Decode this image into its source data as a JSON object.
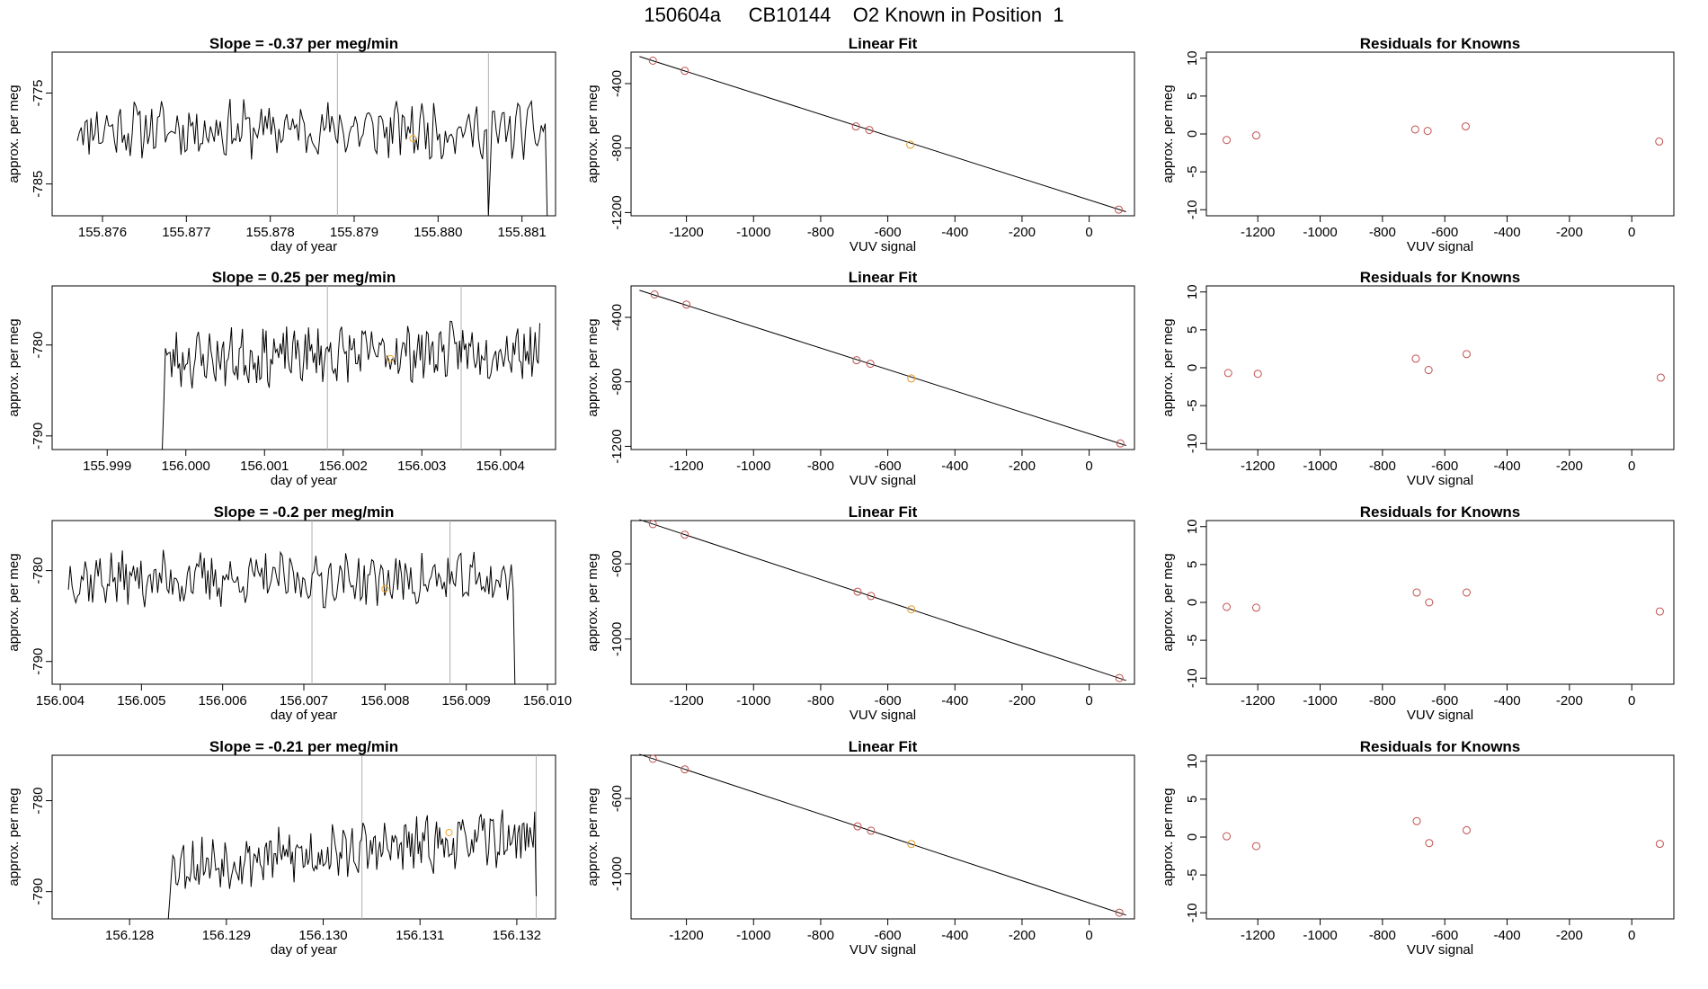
{
  "page": {
    "title": "150604a     CB10144    O2 Known in Position  1"
  },
  "chart_data": [
    {
      "row": 1,
      "timeseries": {
        "type": "line",
        "title": "Slope =  -0.37  per meg/min",
        "xlabel": "day of year",
        "ylabel": "approx. per meg",
        "x_ticks": [
          "155.876",
          "155.877",
          "155.878",
          "155.879",
          "155.880",
          "155.881"
        ],
        "y_ticks": [
          "-775",
          "-785"
        ],
        "xlim": [
          155.8754,
          155.8814
        ],
        "ylim": [
          -788.5,
          -770.5
        ],
        "x_start": 155.8757,
        "x_end": 155.8813,
        "baseline": -779,
        "amplitude": 2.6,
        "trend": -0.2,
        "seed": 11,
        "dips": [
          {
            "x": 155.8806,
            "depth": -788.5
          },
          {
            "x": 155.8813,
            "depth": -788.5
          }
        ],
        "vlines": [
          155.8788,
          155.8806
        ],
        "marker": {
          "x": 155.8797,
          "y": -780,
          "color": "#f5a623"
        }
      },
      "fit": {
        "type": "scatter",
        "title": "Linear Fit",
        "xlabel": "VUV signal",
        "ylabel": "approx. per meg",
        "x_ticks": [
          "-1200",
          "-1000",
          "-800",
          "-600",
          "-400",
          "-200",
          "0"
        ],
        "y_ticks": [
          "-400",
          "-800",
          "-1200"
        ],
        "xlim": [
          -1365,
          135
        ],
        "ylim": [
          -1220,
          -205
        ],
        "line": [
          [
            -1340,
            -232
          ],
          [
            110,
            -1195
          ]
        ],
        "points": [
          {
            "x": -1300,
            "y": -258,
            "color": "#c0504d"
          },
          {
            "x": -1205,
            "y": -321,
            "color": "#c0504d"
          },
          {
            "x": -695,
            "y": -666,
            "color": "#c0504d"
          },
          {
            "x": -655,
            "y": -688,
            "color": "#c0504d"
          },
          {
            "x": -533,
            "y": -779,
            "color": "#e39b2a"
          },
          {
            "x": 88,
            "y": -1182,
            "color": "#c0504d"
          }
        ]
      },
      "residuals": {
        "type": "scatter",
        "title": "Residuals for Knowns",
        "xlabel": "VUV signal",
        "ylabel": "approx. per meg",
        "x_ticks": [
          "-1200",
          "-1000",
          "-800",
          "-600",
          "-400",
          "-200",
          "0"
        ],
        "y_ticks": [
          "-10",
          "-5",
          "0",
          "5",
          "10"
        ],
        "xlim": [
          -1365,
          135
        ],
        "ylim": [
          -10.8,
          10.8
        ],
        "points": [
          {
            "x": -1300,
            "y": -0.8,
            "color": "#c0504d"
          },
          {
            "x": -1205,
            "y": -0.2,
            "color": "#c0504d"
          },
          {
            "x": -695,
            "y": 0.6,
            "color": "#c0504d"
          },
          {
            "x": -655,
            "y": 0.4,
            "color": "#c0504d"
          },
          {
            "x": -533,
            "y": 1.0,
            "color": "#c0504d"
          },
          {
            "x": 88,
            "y": -1.0,
            "color": "#c0504d"
          }
        ]
      }
    },
    {
      "row": 2,
      "timeseries": {
        "type": "line",
        "title": "Slope =  0.25  per meg/min",
        "xlabel": "day of year",
        "ylabel": "approx. per meg",
        "x_ticks": [
          "155.999",
          "156.000",
          "156.001",
          "156.002",
          "156.003",
          "156.004"
        ],
        "y_ticks": [
          "-780",
          "-790"
        ],
        "xlim": [
          155.9983,
          156.0047
        ],
        "ylim": [
          -791.5,
          -773.5
        ],
        "x_start": 155.9997,
        "x_end": 156.0045,
        "baseline": -781,
        "amplitude": 2.6,
        "trend": 1.2,
        "seed": 23,
        "dips": [
          {
            "x": 155.9997,
            "depth": -791.5
          }
        ],
        "vlines": [
          156.0018,
          156.0035
        ],
        "marker": {
          "x": 156.0026,
          "y": -781.5,
          "color": "#f5a623"
        }
      },
      "fit": {
        "type": "scatter",
        "title": "Linear Fit",
        "xlabel": "VUV signal",
        "ylabel": "approx. per meg",
        "x_ticks": [
          "-1200",
          "-1000",
          "-800",
          "-600",
          "-400",
          "-200",
          "0"
        ],
        "y_ticks": [
          "-400",
          "-800",
          "-1200"
        ],
        "xlim": [
          -1365,
          135
        ],
        "ylim": [
          -1220,
          -205
        ],
        "line": [
          [
            -1340,
            -232
          ],
          [
            110,
            -1195
          ]
        ],
        "points": [
          {
            "x": -1295,
            "y": -258,
            "color": "#c0504d"
          },
          {
            "x": -1200,
            "y": -321,
            "color": "#c0504d"
          },
          {
            "x": -693,
            "y": -666,
            "color": "#c0504d"
          },
          {
            "x": -652,
            "y": -688,
            "color": "#c0504d"
          },
          {
            "x": -530,
            "y": -779,
            "color": "#e39b2a"
          },
          {
            "x": 93,
            "y": -1182,
            "color": "#c0504d"
          }
        ]
      },
      "residuals": {
        "type": "scatter",
        "title": "Residuals for Knowns",
        "xlabel": "VUV signal",
        "ylabel": "approx. per meg",
        "x_ticks": [
          "-1200",
          "-1000",
          "-800",
          "-600",
          "-400",
          "-200",
          "0"
        ],
        "y_ticks": [
          "-10",
          "-5",
          "0",
          "5",
          "10"
        ],
        "xlim": [
          -1365,
          135
        ],
        "ylim": [
          -10.8,
          10.8
        ],
        "points": [
          {
            "x": -1295,
            "y": -0.7,
            "color": "#c0504d"
          },
          {
            "x": -1200,
            "y": -0.8,
            "color": "#c0504d"
          },
          {
            "x": -693,
            "y": 1.2,
            "color": "#c0504d"
          },
          {
            "x": -652,
            "y": -0.3,
            "color": "#c0504d"
          },
          {
            "x": -530,
            "y": 1.8,
            "color": "#c0504d"
          },
          {
            "x": 93,
            "y": -1.3,
            "color": "#c0504d"
          }
        ]
      }
    },
    {
      "row": 3,
      "timeseries": {
        "type": "line",
        "title": "Slope =  -0.2  per meg/min",
        "xlabel": "day of year",
        "ylabel": "approx. per meg",
        "x_ticks": [
          "156.004",
          "156.005",
          "156.006",
          "156.007",
          "156.008",
          "156.009",
          "156.010"
        ],
        "y_ticks": [
          "-780",
          "-790"
        ],
        "xlim": [
          156.0039,
          156.0101
        ],
        "ylim": [
          -792.5,
          -774.5
        ],
        "x_start": 156.0041,
        "x_end": 156.0096,
        "baseline": -781,
        "amplitude": 2.5,
        "trend": -0.3,
        "seed": 37,
        "dips": [
          {
            "x": 156.0096,
            "depth": -792.5
          }
        ],
        "vlines": [
          156.0071,
          156.0088
        ],
        "marker": {
          "x": 156.008,
          "y": -782,
          "color": "#f5a623"
        }
      },
      "fit": {
        "type": "scatter",
        "title": "Linear Fit",
        "xlabel": "VUV signal",
        "ylabel": "approx. per meg",
        "x_ticks": [
          "-1200",
          "-1000",
          "-800",
          "-600",
          "-400",
          "-200",
          "0"
        ],
        "y_ticks": [
          "-600",
          "-1000"
        ],
        "xlim": [
          -1365,
          135
        ],
        "ylim": [
          -1240,
          -370
        ],
        "line": [
          [
            -1340,
            -365
          ],
          [
            110,
            -1220
          ]
        ],
        "points": [
          {
            "x": -1300,
            "y": -389,
            "color": "#c0504d"
          },
          {
            "x": -1205,
            "y": -445,
            "color": "#c0504d"
          },
          {
            "x": -690,
            "y": -748,
            "color": "#c0504d"
          },
          {
            "x": -650,
            "y": -771,
            "color": "#c0504d"
          },
          {
            "x": -530,
            "y": -842,
            "color": "#e39b2a"
          },
          {
            "x": 90,
            "y": -1207,
            "color": "#c0504d"
          }
        ]
      },
      "residuals": {
        "type": "scatter",
        "title": "Residuals for Knowns",
        "xlabel": "VUV signal",
        "ylabel": "approx. per meg",
        "x_ticks": [
          "-1200",
          "-1000",
          "-800",
          "-600",
          "-400",
          "-200",
          "0"
        ],
        "y_ticks": [
          "-10",
          "-5",
          "0",
          "5",
          "10"
        ],
        "xlim": [
          -1365,
          135
        ],
        "ylim": [
          -10.8,
          10.8
        ],
        "points": [
          {
            "x": -1300,
            "y": -0.6,
            "color": "#c0504d"
          },
          {
            "x": -1205,
            "y": -0.7,
            "color": "#c0504d"
          },
          {
            "x": -690,
            "y": 1.3,
            "color": "#c0504d"
          },
          {
            "x": -650,
            "y": 0.0,
            "color": "#c0504d"
          },
          {
            "x": -530,
            "y": 1.3,
            "color": "#c0504d"
          },
          {
            "x": 90,
            "y": -1.2,
            "color": "#c0504d"
          }
        ]
      }
    },
    {
      "row": 4,
      "timeseries": {
        "type": "line",
        "title": "Slope =  -0.21  per meg/min",
        "xlabel": "day of year",
        "ylabel": "approx. per meg",
        "x_ticks": [
          "156.128",
          "156.129",
          "156.130",
          "156.131",
          "156.132"
        ],
        "y_ticks": [
          "-780",
          "-790"
        ],
        "xlim": [
          156.1272,
          156.1324
        ],
        "ylim": [
          -793,
          -775
        ],
        "x_start": 156.1284,
        "x_end": 156.1322,
        "baseline": -785.5,
        "amplitude": 2.5,
        "trend": 3.2,
        "seed": 53,
        "dips": [
          {
            "x": 156.1284,
            "depth": -793
          },
          {
            "x": 156.1322,
            "depth": -790.5
          }
        ],
        "vlines": [
          156.1304,
          156.1322
        ],
        "marker": {
          "x": 156.1313,
          "y": -783.5,
          "color": "#f5a623"
        }
      },
      "fit": {
        "type": "scatter",
        "title": "Linear Fit",
        "xlabel": "VUV signal",
        "ylabel": "approx. per meg",
        "x_ticks": [
          "-1200",
          "-1000",
          "-800",
          "-600",
          "-400",
          "-200",
          "0"
        ],
        "y_ticks": [
          "-600",
          "-1000"
        ],
        "xlim": [
          -1365,
          135
        ],
        "ylim": [
          -1240,
          -370
        ],
        "line": [
          [
            -1340,
            -365
          ],
          [
            110,
            -1220
          ]
        ],
        "points": [
          {
            "x": -1300,
            "y": -389,
            "color": "#c0504d"
          },
          {
            "x": -1205,
            "y": -445,
            "color": "#c0504d"
          },
          {
            "x": -690,
            "y": -748,
            "color": "#c0504d"
          },
          {
            "x": -650,
            "y": -771,
            "color": "#c0504d"
          },
          {
            "x": -530,
            "y": -842,
            "color": "#e39b2a"
          },
          {
            "x": 90,
            "y": -1207,
            "color": "#c0504d"
          }
        ]
      },
      "residuals": {
        "type": "scatter",
        "title": "Residuals for Knowns",
        "xlabel": "VUV signal",
        "ylabel": "approx. per meg",
        "x_ticks": [
          "-1200",
          "-1000",
          "-800",
          "-600",
          "-400",
          "-200",
          "0"
        ],
        "y_ticks": [
          "-10",
          "-5",
          "0",
          "5",
          "10"
        ],
        "xlim": [
          -1365,
          135
        ],
        "ylim": [
          -10.8,
          10.8
        ],
        "points": [
          {
            "x": -1300,
            "y": 0.1,
            "color": "#c0504d"
          },
          {
            "x": -1205,
            "y": -1.2,
            "color": "#c0504d"
          },
          {
            "x": -690,
            "y": 2.1,
            "color": "#c0504d"
          },
          {
            "x": -650,
            "y": -0.8,
            "color": "#c0504d"
          },
          {
            "x": -530,
            "y": 0.9,
            "color": "#c0504d"
          },
          {
            "x": 90,
            "y": -0.9,
            "color": "#c0504d"
          }
        ]
      }
    }
  ]
}
